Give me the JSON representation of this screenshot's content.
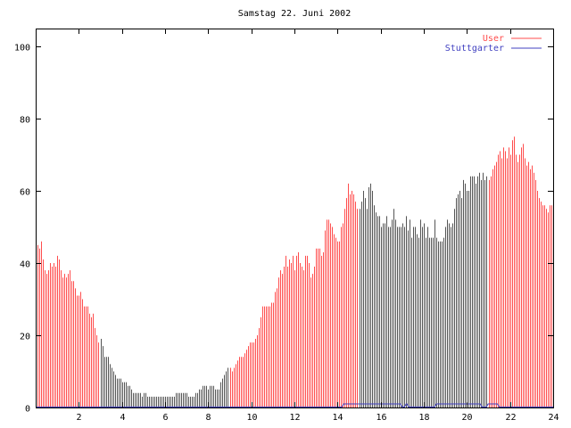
{
  "chart_data": {
    "type": "bar",
    "title": "Samstag 22. Juni 2002",
    "xlabel": "",
    "ylabel": "",
    "xlim": [
      0,
      24
    ],
    "ylim": [
      0,
      105
    ],
    "xticks": [
      "2",
      "4",
      "6",
      "8",
      "10",
      "12",
      "14",
      "16",
      "18",
      "20",
      "22",
      "24"
    ],
    "yticks": [
      "0",
      "20",
      "40",
      "60",
      "80",
      "100"
    ],
    "legend_position": "top-right",
    "bin_minutes": 5,
    "series": [
      {
        "name": "User",
        "color": "#ff4d4d",
        "values": [
          46,
          45,
          44,
          46,
          41,
          38,
          37,
          38,
          40,
          39,
          40,
          39,
          42,
          41,
          38,
          36,
          37,
          36,
          37,
          38,
          35,
          35,
          33,
          31,
          31,
          32,
          30,
          28,
          28,
          28,
          26,
          25,
          26,
          22,
          20,
          18,
          19,
          17,
          14,
          14,
          14,
          12,
          11,
          10,
          9,
          8,
          8,
          8,
          7,
          7,
          7,
          6,
          6,
          5,
          4,
          4,
          4,
          4,
          4,
          3,
          4,
          4,
          3,
          3,
          3,
          3,
          3,
          3,
          3,
          3,
          3,
          3,
          3,
          3,
          3,
          3,
          3,
          3,
          4,
          4,
          4,
          4,
          4,
          4,
          4,
          3,
          3,
          3,
          3,
          4,
          4,
          5,
          5,
          6,
          6,
          6,
          5,
          6,
          6,
          6,
          5,
          5,
          5,
          7,
          8,
          9,
          10,
          11,
          11,
          10,
          11,
          12,
          13,
          14,
          14,
          14,
          15,
          16,
          17,
          18,
          18,
          18,
          19,
          20,
          22,
          25,
          28,
          28,
          28,
          28,
          28,
          29,
          29,
          32,
          33,
          36,
          38,
          37,
          39,
          42,
          39,
          41,
          40,
          42,
          38,
          42,
          43,
          40,
          39,
          38,
          42,
          42,
          40,
          36,
          37,
          39,
          44,
          44,
          44,
          42,
          43,
          49,
          52,
          52,
          51,
          50,
          48,
          47,
          46,
          46,
          50,
          51,
          55,
          58,
          62,
          59,
          60,
          59,
          57,
          55,
          55,
          57,
          60,
          58,
          55,
          61,
          62,
          60,
          56,
          54,
          53,
          53,
          50,
          51,
          51,
          53,
          50,
          50,
          52,
          55,
          52,
          50,
          50,
          50,
          51,
          50,
          53,
          49,
          52,
          47,
          50,
          50,
          48,
          47,
          52,
          50,
          51,
          47,
          50,
          47,
          47,
          47,
          52,
          47,
          46,
          46,
          46,
          47,
          50,
          52,
          51,
          50,
          51,
          55,
          58,
          59,
          60,
          58,
          63,
          62,
          60,
          60,
          64,
          64,
          64,
          62,
          64,
          65,
          63,
          65,
          63,
          64,
          63,
          64,
          66,
          67,
          68,
          70,
          71,
          69,
          72,
          71,
          69,
          72,
          70,
          74,
          75,
          70,
          68,
          70,
          72,
          73,
          69,
          67,
          68,
          66,
          67,
          65,
          63,
          60,
          58,
          57,
          56,
          56,
          55,
          54,
          56,
          56
        ]
      },
      {
        "name": "Stuttgarter",
        "color": "#4040c0",
        "impulse_color": "#555555",
        "active_hours": [
          [
            3,
            9
          ],
          [
            15,
            21
          ]
        ],
        "line_segments": [
          [
            14.2,
            17.0,
            1
          ],
          [
            17.1,
            17.3,
            1
          ],
          [
            18.5,
            20.7,
            1
          ],
          [
            20.9,
            21.5,
            1
          ]
        ]
      }
    ]
  }
}
